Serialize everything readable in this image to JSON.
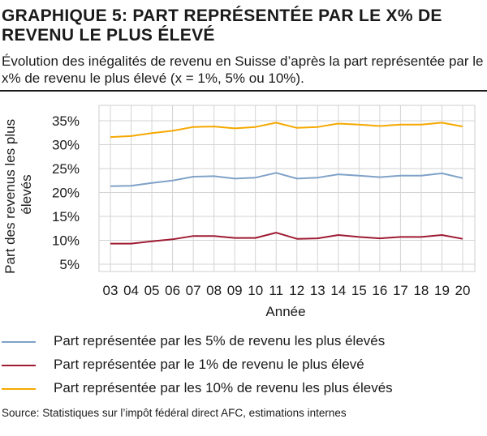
{
  "header": {
    "title": "GRAPHIQUE 5: PART REPRÉSENTÉE PAR LE X% DE REVENU LE PLUS ÉLEVÉ",
    "subtitle": "Évolution des inégalités de revenu en Suisse d’après la part représentée par le x% de revenu le plus élevé (x = 1%, 5% ou 10%)."
  },
  "chart_data": {
    "type": "line",
    "categories": [
      "03",
      "04",
      "05",
      "06",
      "07",
      "08",
      "09",
      "10",
      "11",
      "12",
      "13",
      "14",
      "15",
      "16",
      "17",
      "18",
      "19",
      "20"
    ],
    "xlabel": "Année",
    "ylabel": "Part des revenus les plus élevés",
    "ylim": [
      0.05,
      0.35
    ],
    "yticks": [
      0.35,
      0.3,
      0.25,
      0.2,
      0.15,
      0.1,
      0.05
    ],
    "ytick_labels": [
      "35%",
      "30%",
      "25%",
      "20%",
      "15%",
      "10%",
      "5%"
    ],
    "grid": true,
    "legend_position": "bottom",
    "series": [
      {
        "name": "Part représentée par les 5% de revenu les plus élevés",
        "color": "#7FA2C8",
        "values": [
          0.213,
          0.214,
          0.22,
          0.225,
          0.233,
          0.234,
          0.229,
          0.231,
          0.241,
          0.229,
          0.231,
          0.238,
          0.235,
          0.232,
          0.235,
          0.235,
          0.24,
          0.23
        ]
      },
      {
        "name": "Part représentée par le 1% de revenu le plus élevé",
        "color": "#9E1B32",
        "values": [
          0.093,
          0.093,
          0.098,
          0.102,
          0.109,
          0.109,
          0.105,
          0.105,
          0.116,
          0.103,
          0.104,
          0.111,
          0.107,
          0.104,
          0.107,
          0.107,
          0.111,
          0.103
        ]
      },
      {
        "name": "Part représentée par les 10% de revenu les plus élevés",
        "color": "#F5A800",
        "values": [
          0.316,
          0.318,
          0.324,
          0.329,
          0.337,
          0.338,
          0.334,
          0.337,
          0.346,
          0.335,
          0.337,
          0.344,
          0.342,
          0.339,
          0.342,
          0.342,
          0.346,
          0.338
        ]
      }
    ]
  },
  "footer": {
    "source": "Source: Statistiques sur l’impôt fédéral direct AFC, estimations internes"
  }
}
